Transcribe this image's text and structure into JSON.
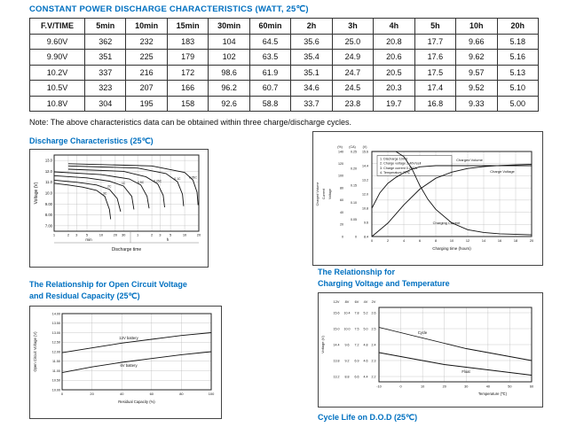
{
  "page": {
    "title": "CONSTANT POWER DISCHARGE CHARACTERISTICS (WATT, 25℃)",
    "note": "Note: The above characteristics data can be obtained within three charge/discharge cycles."
  },
  "table": {
    "headers": [
      "F.V/TIME",
      "5min",
      "10min",
      "15min",
      "30min",
      "60min",
      "2h",
      "3h",
      "4h",
      "5h",
      "10h",
      "20h"
    ],
    "rows": [
      [
        "9.60V",
        "362",
        "232",
        "183",
        "104",
        "64.5",
        "35.6",
        "25.0",
        "20.8",
        "17.7",
        "9.66",
        "5.18"
      ],
      [
        "9.90V",
        "351",
        "225",
        "179",
        "102",
        "63.5",
        "35.4",
        "24.9",
        "20.6",
        "17.6",
        "9.62",
        "5.16"
      ],
      [
        "10.2V",
        "337",
        "216",
        "172",
        "98.6",
        "61.9",
        "35.1",
        "24.7",
        "20.5",
        "17.5",
        "9.57",
        "5.13"
      ],
      [
        "10.5V",
        "323",
        "207",
        "166",
        "96.2",
        "60.7",
        "34.6",
        "24.5",
        "20.3",
        "17.4",
        "9.52",
        "5.10"
      ],
      [
        "10.8V",
        "304",
        "195",
        "158",
        "92.6",
        "58.8",
        "33.7",
        "23.8",
        "19.7",
        "16.8",
        "9.33",
        "5.00"
      ]
    ]
  },
  "headings": {
    "discharge": "Discharge Characteristics (25℃)",
    "charge_temp_line1": "The Relationship for",
    "charge_temp_line2": "Charging Voltage and Temperature",
    "ocv_line1": "The Relationship for Open Circuit Voltage",
    "ocv_line2": "and Residual Capacity (25℃)",
    "cycle_life": "Cycle Life on D.O.D (25℃)"
  },
  "chart_data": [
    {
      "id": "discharge",
      "type": "line",
      "title": "Discharge Characteristics (25℃)",
      "xlabel": "Discharge time",
      "ylabel": "Voltage (V)",
      "xscale": "log",
      "x_unit_labels": [
        "min",
        "h"
      ],
      "yticks": [
        "13.0",
        "12.0",
        "11.0",
        "10.0",
        "9.00",
        "8.00",
        "7.00"
      ],
      "ylim": [
        6.5,
        13.5
      ],
      "xticks_min": [
        1,
        2,
        3,
        5,
        10,
        20,
        30
      ],
      "xtick_min_labels": [
        "1",
        "2",
        "3",
        "5",
        "10",
        "20",
        "30"
      ],
      "xticks_h": [
        60,
        120,
        180,
        300,
        600,
        1200
      ],
      "xtick_h_labels": [
        "1",
        "2",
        "3",
        "5",
        "10",
        "20"
      ],
      "series": [
        {
          "name": "3C",
          "points": [
            [
              1,
              10.9
            ],
            [
              2,
              10.75
            ],
            [
              4,
              10.55
            ],
            [
              8,
              10.25
            ],
            [
              12,
              9.7
            ],
            [
              15,
              8.5
            ],
            [
              16,
              7.6
            ]
          ]
        },
        {
          "name": "2C",
          "points": [
            [
              1,
              11.2
            ],
            [
              3,
              11.0
            ],
            [
              8,
              10.75
            ],
            [
              15,
              10.35
            ],
            [
              22,
              9.5
            ],
            [
              26,
              8.3
            ]
          ]
        },
        {
          "name": "1C",
          "points": [
            [
              1,
              11.6
            ],
            [
              5,
              11.4
            ],
            [
              15,
              11.1
            ],
            [
              30,
              10.65
            ],
            [
              45,
              9.7
            ],
            [
              50,
              8.5
            ]
          ]
        },
        {
          "name": "0.5C",
          "points": [
            [
              1,
              11.95
            ],
            [
              10,
              11.7
            ],
            [
              40,
              11.3
            ],
            [
              70,
              10.75
            ],
            [
              95,
              9.7
            ],
            [
              105,
              8.6
            ]
          ]
        },
        {
          "name": "0.25C",
          "points": [
            [
              2,
              12.2
            ],
            [
              30,
              12.0
            ],
            [
              90,
              11.5
            ],
            [
              160,
              10.85
            ],
            [
              210,
              9.8
            ],
            [
              225,
              8.7
            ]
          ]
        },
        {
          "name": "0.1C",
          "points": [
            [
              2,
              12.5
            ],
            [
              60,
              12.3
            ],
            [
              240,
              11.8
            ],
            [
              420,
              11.05
            ],
            [
              540,
              9.9
            ],
            [
              570,
              8.8
            ]
          ]
        },
        {
          "name": "0.05C",
          "points": [
            [
              2,
              12.7
            ],
            [
              120,
              12.5
            ],
            [
              600,
              11.9
            ],
            [
              900,
              11.2
            ],
            [
              1100,
              10.1
            ],
            [
              1160,
              8.9
            ]
          ]
        }
      ]
    },
    {
      "id": "charging",
      "type": "line",
      "title": "Charging Characteristics",
      "xlabel": "Charging time (hours)",
      "xlim": [
        0,
        20
      ],
      "xticks": [
        "0",
        "2",
        "4",
        "6",
        "8",
        "10",
        "12",
        "14",
        "16",
        "18",
        "20"
      ],
      "axes": {
        "charged_volume": {
          "title": "Charged Volume",
          "unit": "(%)",
          "range": [
            0,
            140
          ],
          "ticks": [
            "0",
            "20",
            "40",
            "60",
            "80",
            "100",
            "120",
            "140"
          ]
        },
        "current": {
          "title": "Current",
          "unit": "(CA)",
          "range": [
            0,
            0.25
          ],
          "ticks": [
            "0",
            "0.05",
            "0.10",
            "0.15",
            "0.20",
            "0.25"
          ]
        },
        "voltage": {
          "title": "Voltage",
          "unit": "(V)",
          "range": [
            8.4,
            15.6
          ],
          "ticks": [
            "8.4",
            "9.6",
            "10.8",
            "12.0",
            "13.2",
            "14.4",
            "15.6"
          ]
        }
      },
      "legend": [
        "1. Discharge 100%",
        "2. Charge voltage 2.40V/cell",
        "3. Charge current 0.25CA",
        "4. Temperature 25℃"
      ],
      "series": [
        {
          "name": "Charged Volume",
          "axis": "charged_volume",
          "points": [
            [
              0,
              0
            ],
            [
              2,
              22
            ],
            [
              4,
              52
            ],
            [
              6,
              78
            ],
            [
              8,
              96
            ],
            [
              10,
              106
            ],
            [
              12,
              112
            ],
            [
              14,
              115
            ],
            [
              16,
              117
            ],
            [
              18,
              118
            ],
            [
              20,
              119
            ]
          ]
        },
        {
          "name": "Charge Voltage",
          "axis": "voltage",
          "points": [
            [
              0,
              10.8
            ],
            [
              1,
              12.1
            ],
            [
              2,
              12.9
            ],
            [
              3,
              13.4
            ],
            [
              4,
              13.8
            ],
            [
              5,
              14.1
            ],
            [
              6,
              14.3
            ],
            [
              8,
              14.4
            ],
            [
              12,
              14.4
            ],
            [
              20,
              14.4
            ]
          ]
        },
        {
          "name": "Charging Current",
          "axis": "current",
          "points": [
            [
              0,
              0.25
            ],
            [
              3,
              0.25
            ],
            [
              4,
              0.235
            ],
            [
              5,
              0.2
            ],
            [
              6,
              0.15
            ],
            [
              7,
              0.11
            ],
            [
              8,
              0.08
            ],
            [
              10,
              0.04
            ],
            [
              12,
              0.02
            ],
            [
              14,
              0.012
            ],
            [
              16,
              0.008
            ],
            [
              20,
              0.005
            ]
          ]
        }
      ]
    },
    {
      "id": "ocv",
      "type": "line",
      "xlabel": "Residual Capacity (%)",
      "ylabel": "Open Circuit Voltage (V)",
      "ylim": [
        10.0,
        14.0
      ],
      "yticks": [
        "14.00",
        "13.50",
        "13.00",
        "12.50",
        "12.00",
        "11.50",
        "11.00",
        "10.50",
        "10.00"
      ],
      "xlim": [
        0,
        100
      ],
      "xticks": [
        "0",
        "20",
        "40",
        "60",
        "80",
        "100"
      ],
      "series": [
        {
          "name": "12V battery",
          "yrange": [
            10.0,
            14.0
          ],
          "points": [
            [
              0,
              11.95
            ],
            [
              20,
              12.2
            ],
            [
              40,
              12.45
            ],
            [
              60,
              12.65
            ],
            [
              80,
              12.85
            ],
            [
              100,
              13.0
            ]
          ]
        },
        {
          "name": "6V battery",
          "yrange": [
            5.5,
            7.5
          ],
          "points": [
            [
              0,
              5.95
            ],
            [
              20,
              6.1
            ],
            [
              40,
              6.22
            ],
            [
              60,
              6.32
            ],
            [
              80,
              6.42
            ],
            [
              100,
              6.5
            ]
          ]
        }
      ]
    },
    {
      "id": "charge_temp",
      "type": "line",
      "xlabel": "Temperature (℃)",
      "ylabel": "Voltage (V)",
      "scale_headers": [
        "12V",
        "8V",
        "6V",
        "4V",
        "2V"
      ],
      "ytick_rows": [
        [
          "15.6",
          "10.4",
          "7.8",
          "5.2",
          "2.6"
        ],
        [
          "15.0",
          "10.0",
          "7.5",
          "5.0",
          "2.5"
        ],
        [
          "14.4",
          "9.6",
          "7.2",
          "4.8",
          "2.4"
        ],
        [
          "13.8",
          "9.2",
          "6.9",
          "4.6",
          "2.3"
        ],
        [
          "13.2",
          "8.8",
          "6.6",
          "4.4",
          "2.2"
        ]
      ],
      "ylim": [
        13.0,
        15.8
      ],
      "xlim": [
        -10,
        60
      ],
      "xticks": [
        "-10",
        "0",
        "10",
        "20",
        "30",
        "40",
        "50",
        "60"
      ],
      "series": [
        {
          "name": "Cycle",
          "points": [
            [
              -10,
              15.05
            ],
            [
              0,
              14.85
            ],
            [
              10,
              14.65
            ],
            [
              20,
              14.45
            ],
            [
              30,
              14.25
            ],
            [
              40,
              14.1
            ],
            [
              50,
              13.95
            ],
            [
              60,
              13.8
            ]
          ]
        },
        {
          "name": "Float",
          "points": [
            [
              -10,
              14.1
            ],
            [
              0,
              13.95
            ],
            [
              10,
              13.8
            ],
            [
              20,
              13.65
            ],
            [
              30,
              13.55
            ],
            [
              40,
              13.45
            ],
            [
              50,
              13.35
            ],
            [
              60,
              13.25
            ]
          ]
        }
      ]
    }
  ]
}
